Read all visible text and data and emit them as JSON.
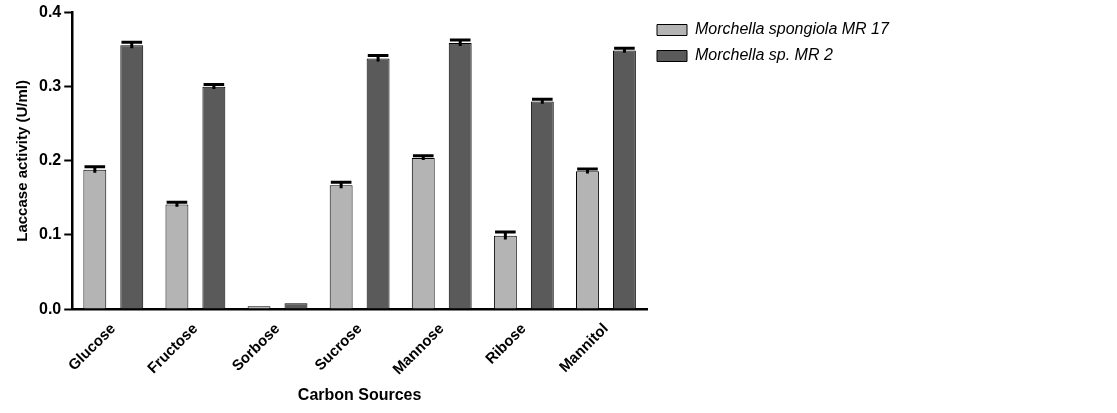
{
  "chart_data": {
    "type": "bar",
    "xlabel": "Carbon Sources",
    "ylabel": "Laccase activity (U/ml)",
    "categories": [
      "Glucose",
      "Fructose",
      "Sorbose",
      "Sucrose",
      "Mannose",
      "Ribose",
      "Mannitol"
    ],
    "series": [
      {
        "name": "Morchella spongiola MR 17",
        "color": "#b4b4b4",
        "values": [
          0.188,
          0.141,
          0.004,
          0.167,
          0.204,
          0.099,
          0.186
        ],
        "errors": [
          0.004,
          0.003,
          null,
          0.004,
          0.003,
          0.005,
          0.003
        ]
      },
      {
        "name": "Morchella sp. MR 2",
        "color": "#5a5a5a",
        "values": [
          0.356,
          0.3,
          0.008,
          0.338,
          0.359,
          0.28,
          0.349
        ],
        "errors": [
          0.004,
          0.003,
          null,
          0.004,
          0.004,
          0.003,
          0.003
        ]
      }
    ],
    "ylim": [
      0,
      0.4
    ],
    "yticks": [
      {
        "value": 0,
        "label": "0.0"
      },
      0.1,
      0.2,
      0.3,
      0.4
    ],
    "grid": false,
    "legend": "top right"
  }
}
